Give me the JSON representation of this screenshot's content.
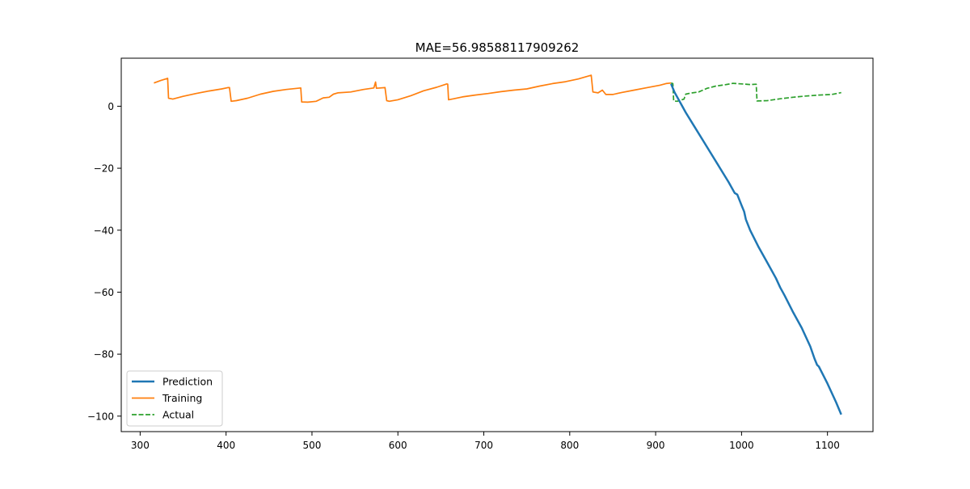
{
  "chart_data": {
    "type": "line",
    "title": "MAE=56.98588117909262",
    "xlabel": "",
    "ylabel": "",
    "xlim": [
      278,
      1153
    ],
    "ylim": [
      -105,
      15.5
    ],
    "xticks": [
      300,
      400,
      500,
      600,
      700,
      800,
      900,
      1000,
      1100
    ],
    "yticks": [
      0,
      -20,
      -40,
      -60,
      -80,
      -100
    ],
    "ytick_labels": [
      "0",
      "−20",
      "−40",
      "−60",
      "−80",
      "−100"
    ],
    "grid": false,
    "legend": {
      "position": "lower-left",
      "entries": [
        "Prediction",
        "Training",
        "Actual"
      ]
    },
    "series": [
      {
        "name": "Prediction",
        "color": "#1f77b4",
        "style": "solid",
        "points": [
          [
            918,
            7.2
          ],
          [
            922,
            4.5
          ],
          [
            928,
            1.5
          ],
          [
            935,
            -2.0
          ],
          [
            945,
            -6.5
          ],
          [
            955,
            -11.0
          ],
          [
            965,
            -15.5
          ],
          [
            975,
            -20.0
          ],
          [
            985,
            -24.5
          ],
          [
            992,
            -28.0
          ],
          [
            995,
            -28.5
          ],
          [
            1000,
            -32.0
          ],
          [
            1003,
            -34.0
          ],
          [
            1005,
            -36.5
          ],
          [
            1010,
            -40.0
          ],
          [
            1020,
            -45.5
          ],
          [
            1030,
            -50.5
          ],
          [
            1040,
            -55.5
          ],
          [
            1045,
            -58.5
          ],
          [
            1050,
            -61.0
          ],
          [
            1060,
            -66.5
          ],
          [
            1070,
            -71.5
          ],
          [
            1075,
            -74.5
          ],
          [
            1080,
            -77.5
          ],
          [
            1085,
            -81.5
          ],
          [
            1088,
            -83.5
          ],
          [
            1090,
            -84.0
          ],
          [
            1100,
            -89.5
          ],
          [
            1110,
            -95.5
          ],
          [
            1116,
            -99.5
          ]
        ]
      },
      {
        "name": "Training",
        "color": "#ff7f0e",
        "style": "solid",
        "points": [
          [
            316,
            7.5
          ],
          [
            324,
            8.3
          ],
          [
            332,
            9.0
          ],
          [
            333,
            2.6
          ],
          [
            338,
            2.3
          ],
          [
            350,
            3.2
          ],
          [
            365,
            4.1
          ],
          [
            380,
            4.9
          ],
          [
            395,
            5.6
          ],
          [
            402,
            6.0
          ],
          [
            404,
            6.0
          ],
          [
            406,
            1.6
          ],
          [
            412,
            1.8
          ],
          [
            425,
            2.6
          ],
          [
            440,
            3.9
          ],
          [
            455,
            4.8
          ],
          [
            470,
            5.4
          ],
          [
            487,
            5.9
          ],
          [
            488,
            1.4
          ],
          [
            495,
            1.3
          ],
          [
            505,
            1.6
          ],
          [
            513,
            2.7
          ],
          [
            520,
            2.9
          ],
          [
            525,
            3.9
          ],
          [
            530,
            4.3
          ],
          [
            545,
            4.6
          ],
          [
            560,
            5.4
          ],
          [
            572,
            5.9
          ],
          [
            574,
            7.8
          ],
          [
            575,
            5.8
          ],
          [
            585,
            6.0
          ],
          [
            587,
            1.8
          ],
          [
            590,
            1.6
          ],
          [
            600,
            2.1
          ],
          [
            615,
            3.4
          ],
          [
            630,
            5.0
          ],
          [
            645,
            6.1
          ],
          [
            657,
            7.2
          ],
          [
            658,
            7.1
          ],
          [
            659,
            2.1
          ],
          [
            665,
            2.4
          ],
          [
            675,
            3.0
          ],
          [
            690,
            3.6
          ],
          [
            705,
            4.1
          ],
          [
            720,
            4.7
          ],
          [
            735,
            5.2
          ],
          [
            750,
            5.6
          ],
          [
            765,
            6.5
          ],
          [
            780,
            7.3
          ],
          [
            795,
            7.9
          ],
          [
            810,
            8.8
          ],
          [
            825,
            10.0
          ],
          [
            827,
            4.6
          ],
          [
            833,
            4.3
          ],
          [
            838,
            5.2
          ],
          [
            842,
            3.8
          ],
          [
            850,
            3.8
          ],
          [
            860,
            4.4
          ],
          [
            875,
            5.2
          ],
          [
            890,
            6.0
          ],
          [
            905,
            6.8
          ],
          [
            912,
            7.3
          ],
          [
            918,
            7.5
          ]
        ]
      },
      {
        "name": "Actual",
        "color": "#2ca02c",
        "style": "dashed",
        "points": [
          [
            918,
            7.5
          ],
          [
            920,
            7.3
          ],
          [
            921,
            1.7
          ],
          [
            925,
            1.6
          ],
          [
            933,
            2.3
          ],
          [
            935,
            3.9
          ],
          [
            940,
            4.2
          ],
          [
            950,
            4.6
          ],
          [
            960,
            5.8
          ],
          [
            970,
            6.5
          ],
          [
            980,
            6.9
          ],
          [
            990,
            7.4
          ],
          [
            1000,
            7.2
          ],
          [
            1010,
            7.0
          ],
          [
            1017,
            7.1
          ],
          [
            1018,
            1.7
          ],
          [
            1030,
            1.8
          ],
          [
            1045,
            2.4
          ],
          [
            1060,
            2.9
          ],
          [
            1075,
            3.3
          ],
          [
            1090,
            3.6
          ],
          [
            1105,
            3.8
          ],
          [
            1116,
            4.4
          ]
        ]
      }
    ]
  }
}
